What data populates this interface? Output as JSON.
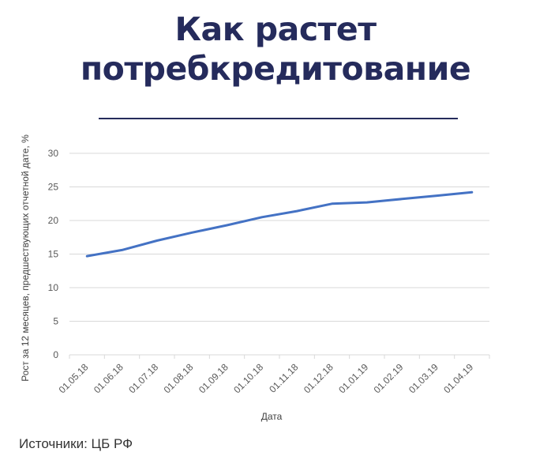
{
  "header": {
    "title_line1": "Как растет",
    "title_line2": "потребкредитование"
  },
  "footer": {
    "source": "Источники: ЦБ РФ"
  },
  "colors": {
    "title": "#252b5c",
    "divider": "#252b5c",
    "line": "#4472c4",
    "grid": "#d9d9d9"
  },
  "chart_data": {
    "type": "line",
    "title": "",
    "xlabel": "Дата",
    "ylabel": "Рост за 12 месяцев, предшествующих отчетной дате, %",
    "ylim": [
      0,
      30
    ],
    "yticks": [
      0,
      5,
      10,
      15,
      20,
      25,
      30
    ],
    "grid": true,
    "legend": "none",
    "categories": [
      "01.05.18",
      "01.06.18",
      "01.07.18",
      "01.08.18",
      "01.09.18",
      "01.10.18",
      "01.11.18",
      "01.12.18",
      "01.01.19",
      "01.02.19",
      "01.03.19",
      "01.04.19"
    ],
    "series": [
      {
        "values": [
          14.7,
          15.6,
          17.0,
          18.2,
          19.3,
          20.5,
          21.4,
          22.5,
          22.7,
          23.2,
          23.7,
          24.2
        ]
      }
    ]
  }
}
